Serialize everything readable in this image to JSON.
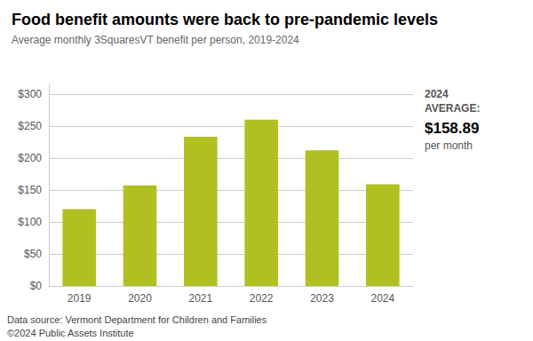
{
  "chart_data": {
    "type": "bar",
    "title": "Food benefit amounts were back to pre-pandemic levels",
    "subtitle": "Average monthly 3SquaresVT benefit per person, 2019-2024",
    "categories": [
      "2019",
      "2020",
      "2021",
      "2022",
      "2023",
      "2024"
    ],
    "values": [
      120,
      157,
      233,
      260,
      212,
      158.89
    ],
    "color": "#afc020",
    "ylim": [
      0,
      315
    ],
    "yticks": [
      {
        "value": 0,
        "label": "$0"
      },
      {
        "value": 50,
        "label": "$50"
      },
      {
        "value": 100,
        "label": "$100"
      },
      {
        "value": 150,
        "label": "$150"
      },
      {
        "value": 200,
        "label": "$200"
      },
      {
        "value": 250,
        "label": "$250"
      },
      {
        "value": 300,
        "label": "$300"
      }
    ],
    "grid": true,
    "annotations": [
      "2024",
      "AVERAGE:",
      "$158.89",
      "per month"
    ],
    "footnotes": [
      "Data source: Vermont Department for Children and Families",
      "©2024 Public Assets Institute"
    ]
  }
}
